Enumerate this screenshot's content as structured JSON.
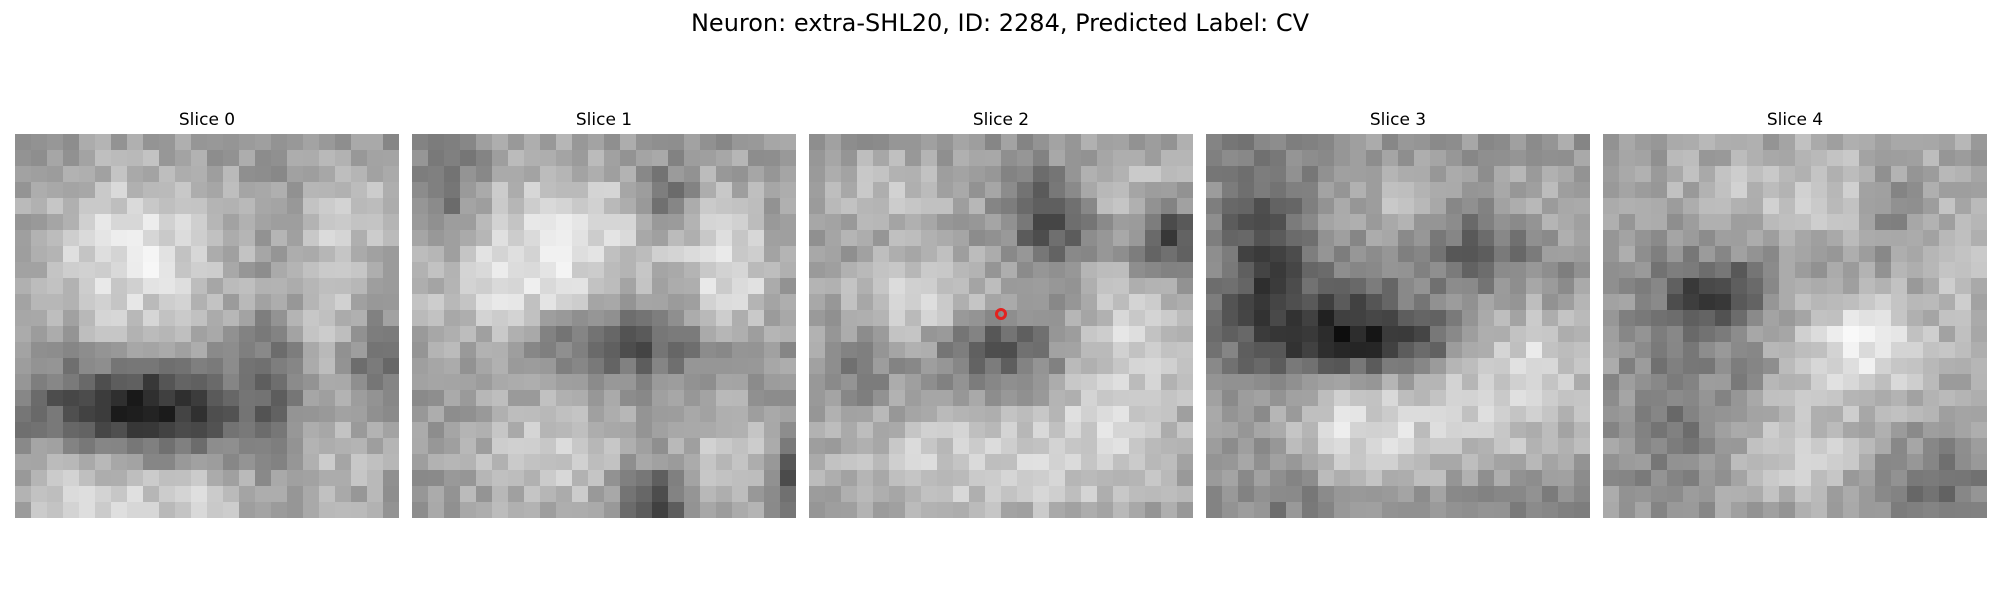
{
  "figure": {
    "title": "Neuron: extra-SHL20, ID: 2284, Predicted Label: CV"
  },
  "panels": [
    {
      "label": "Slice 0"
    },
    {
      "label": "Slice 1"
    },
    {
      "label": "Slice 2",
      "has_marker": true
    },
    {
      "label": "Slice 3"
    },
    {
      "label": "Slice 4"
    }
  ],
  "colors": {
    "marker": "#e3221f",
    "colormap": "grayscale"
  }
}
